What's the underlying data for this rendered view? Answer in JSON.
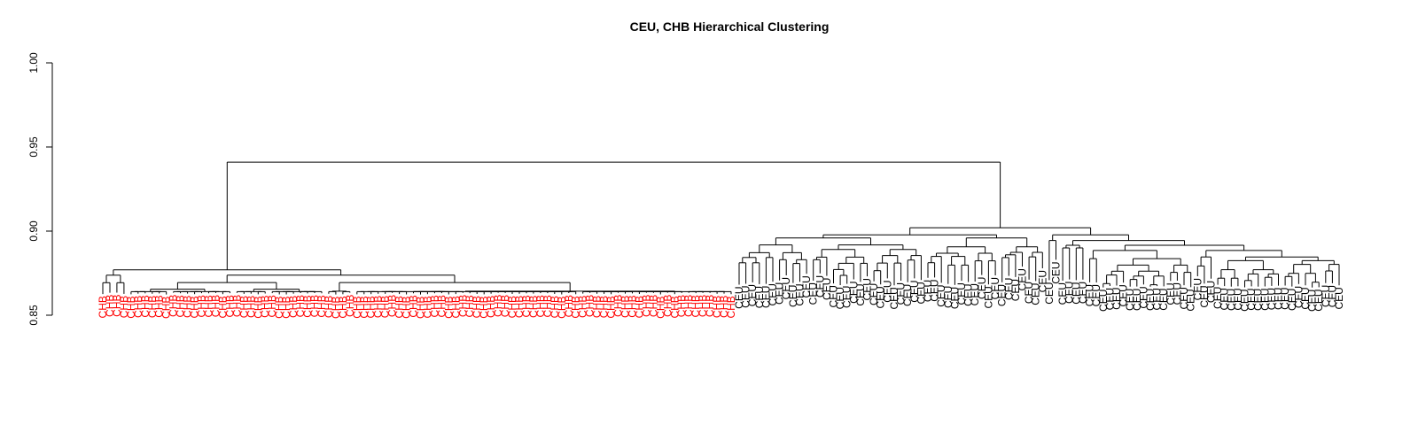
{
  "chart_data": {
    "type": "dendrogram",
    "title": "CEU, CHB Hierarchical Clustering",
    "xlabel": "",
    "ylabel": "",
    "ylim": [
      0.85,
      1.0
    ],
    "yticks": [
      "0.85",
      "0.90",
      "0.95",
      "1.00"
    ],
    "grid": false,
    "colors": {
      "CHB": "#ff0000",
      "CEU": "#000000",
      "branches": "#000000"
    },
    "groups": [
      {
        "name": "CHB",
        "leaf_count": 90,
        "merge_height": 0.877,
        "label_color": "#ff0000"
      },
      {
        "name": "CEU",
        "leaf_count": 90,
        "merge_height": 0.902,
        "label_color": "#000000"
      }
    ],
    "root_height": 0.941
  }
}
